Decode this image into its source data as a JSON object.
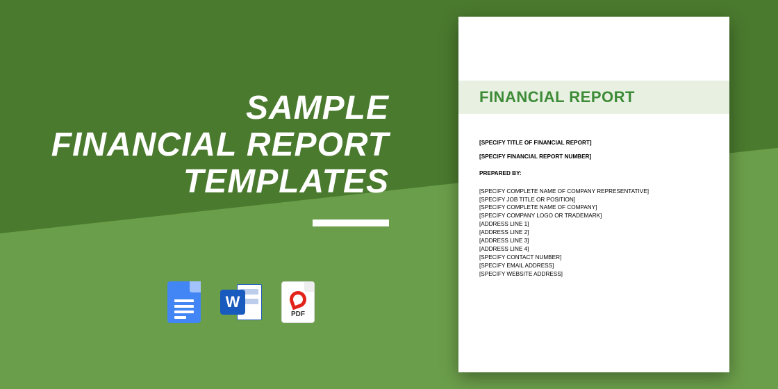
{
  "colors": {
    "bg_dark": "#4a7a2e",
    "bg_light": "#6b9e4a",
    "title_text": "#ffffff",
    "doc_bg": "#ffffff",
    "doc_band": "#e8f0e2",
    "doc_title": "#3d8b37",
    "gdocs": "#4285f4",
    "word": "#185abd",
    "pdf_red": "#e2231a"
  },
  "title": {
    "line1": "SAMPLE",
    "line2": "FINANCIAL REPORT",
    "line3": "TEMPLATES",
    "fontsize": 48,
    "underline_width": 110
  },
  "icons": {
    "word_letter": "W",
    "pdf_label": "PDF"
  },
  "doc": {
    "header": "FINANCIAL REPORT",
    "spec_title": "[SPECIFY TITLE OF FINANCIAL REPORT]",
    "spec_number": "[SPECIFY FINANCIAL REPORT NUMBER]",
    "prepared_label": "PREPARED BY:",
    "fields": [
      "[SPECIFY COMPLETE NAME OF COMPANY REPRESENTATIVE]",
      "[SPECIFY JOB TITLE OR POSITION]",
      "[SPECIFY COMPLETE NAME OF COMPANY]",
      "[SPECIFY COMPANY LOGO OR TRADEMARK]",
      "[ADDRESS LINE 1]",
      "[ADDRESS LINE 2]",
      "[ADDRESS LINE 3]",
      "[ADDRESS LINE 4]",
      "[SPECIFY CONTACT NUMBER]",
      "[SPECIFY EMAIL ADDRESS]",
      "[SPECIFY WEBSITE ADDRESS]"
    ]
  }
}
